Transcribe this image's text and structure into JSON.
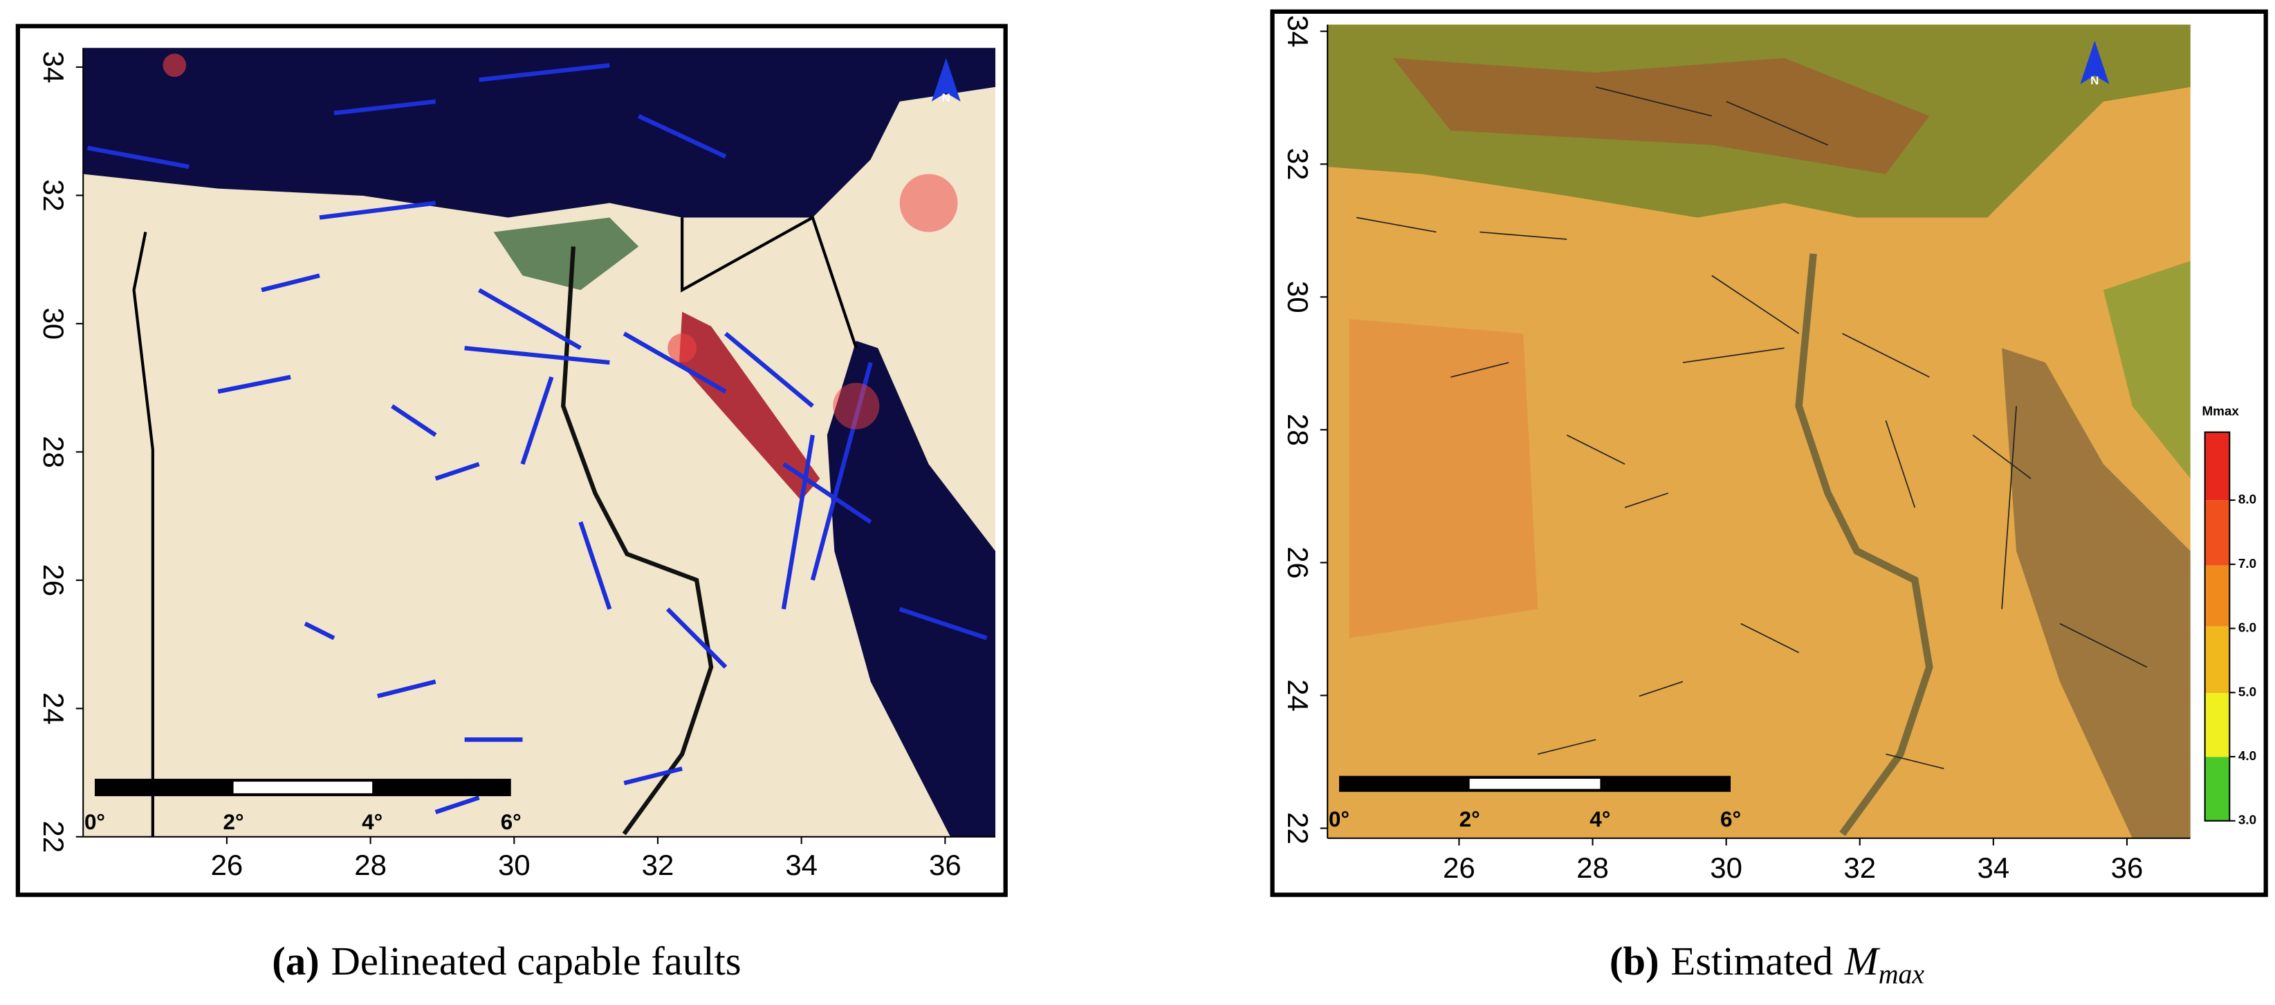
{
  "panels": [
    {
      "caption": {
        "label": "(a)",
        "text": "Delineated capable faults"
      },
      "xlim": [
        24,
        36.7
      ],
      "ylim": [
        22,
        34.3
      ],
      "xticks": [
        26,
        28,
        30,
        32,
        34,
        36
      ],
      "yticks": [
        22,
        24,
        26,
        28,
        30,
        32,
        34
      ],
      "scale_bar": [
        "0°",
        "2°",
        "4°",
        "6°"
      ],
      "north": "N"
    },
    {
      "caption": {
        "label": "(b)",
        "text": "Estimated",
        "math": "M",
        "math_sub": "max"
      },
      "xlim": [
        24.03,
        36.95
      ],
      "ylim": [
        21.85,
        34.1
      ],
      "xticks": [
        26,
        28,
        30,
        32,
        34,
        36
      ],
      "yticks": [
        22,
        24,
        26,
        28,
        30,
        32,
        34
      ],
      "scale_bar": [
        "0°",
        "2°",
        "4°",
        "6°"
      ],
      "north": "N",
      "legend": {
        "title": "Mmax",
        "lim": [
          3,
          9.06
        ],
        "ticks": [
          {
            "value": 3,
            "label": "3.0"
          },
          {
            "value": 4,
            "label": "4.0"
          },
          {
            "value": 5,
            "label": "5.0"
          },
          {
            "value": 6,
            "label": "6.0"
          },
          {
            "value": 7,
            "label": "7.0"
          },
          {
            "value": 8,
            "label": "8.0"
          }
        ]
      }
    }
  ]
}
